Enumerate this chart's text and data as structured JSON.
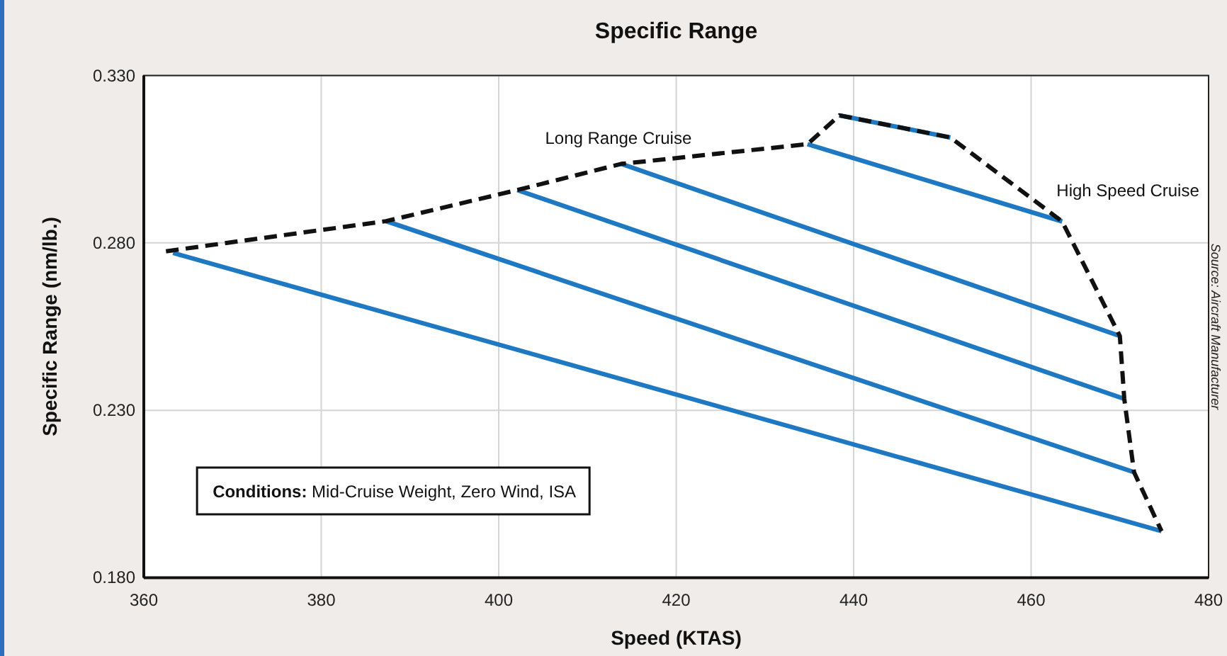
{
  "chart_data": {
    "type": "line",
    "title": "Specific Range",
    "xlabel": "Speed (KTAS)",
    "ylabel": "Specific Range (nm/lb.)",
    "xlim": [
      360,
      480
    ],
    "xticks": [
      360,
      380,
      400,
      420,
      440,
      460,
      480
    ],
    "ylim": [
      0.18,
      0.33
    ],
    "yticks": [
      {
        "value": 0.18,
        "label": "0.180"
      },
      {
        "value": 0.23,
        "label": "0.230"
      },
      {
        "value": 0.28,
        "label": "0.280"
      },
      {
        "value": 0.33,
        "label": "0.330"
      }
    ],
    "grid": true,
    "marker": "none",
    "series": [
      {
        "color": "#1e78c2",
        "x": [
          363.3,
          474.7
        ],
        "values": [
          0.277,
          0.1939
        ]
      },
      {
        "color": "#1e78c2",
        "x": [
          387.3,
          471.6
        ],
        "values": [
          0.2865,
          0.2115
        ]
      },
      {
        "color": "#1e78c2",
        "x": [
          402.1,
          470.5
        ],
        "values": [
          0.2958,
          0.2334
        ]
      },
      {
        "color": "#1e78c2",
        "x": [
          413.8,
          470.0
        ],
        "values": [
          0.3036,
          0.2522
        ]
      },
      {
        "color": "#1e78c2",
        "x": [
          434.8,
          463.5
        ],
        "values": [
          0.3095,
          0.2864
        ]
      },
      {
        "color": "#1e78c2",
        "x": [
          438.4,
          450.9
        ],
        "values": [
          0.3181,
          0.3115
        ]
      },
      {
        "color": "#111111",
        "line_style": "dashed",
        "x": [
          362.5,
          387.3,
          402.1,
          413.8,
          434.8,
          438.4,
          450.9,
          463.5,
          470.0,
          470.5,
          471.6,
          474.7
        ],
        "values": [
          0.2775,
          0.2865,
          0.2958,
          0.3036,
          0.3095,
          0.3181,
          0.3115,
          0.2864,
          0.2522,
          0.2334,
          0.2115,
          0.1939
        ]
      }
    ],
    "annotations": [
      {
        "text": "Long Range Cruise",
        "x": 413.8,
        "y": 0.3036
      },
      {
        "text": "High Speed Cruise",
        "x": 463.5,
        "y": 0.2864
      },
      "Conditions: Mid-Cruise Weight, Zero Wind, ISA",
      "Source: Aircraft Manufacturer"
    ]
  }
}
